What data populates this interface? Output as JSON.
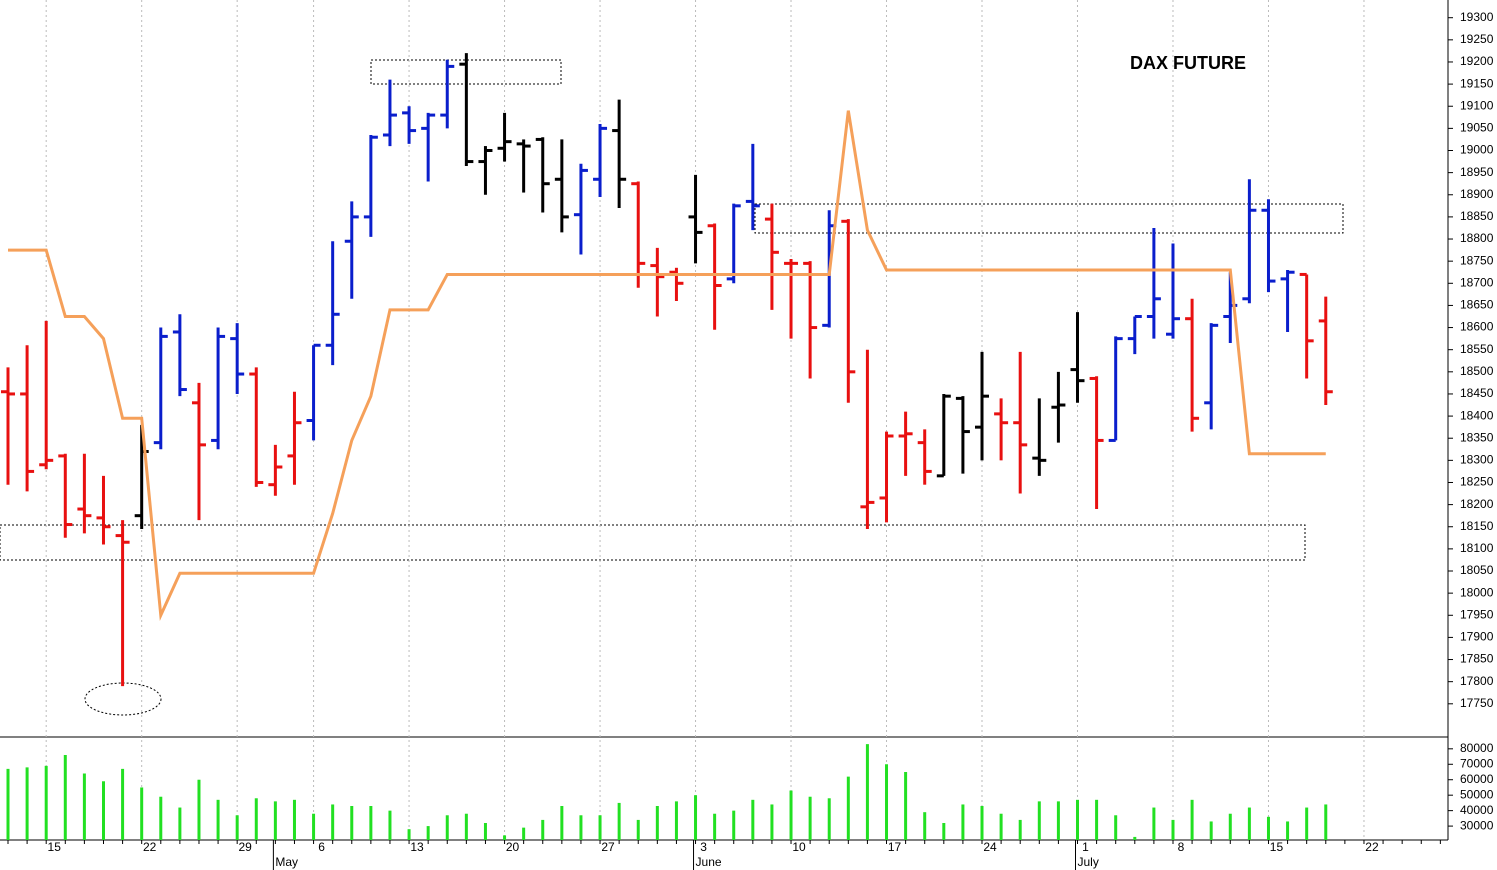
{
  "chart_data": [
    {
      "type": "ohlc",
      "title": "DAX FUTURE",
      "ylim": [
        17675,
        19340
      ],
      "yticks": [
        17750,
        17800,
        17850,
        17900,
        17950,
        18000,
        18050,
        18100,
        18150,
        18200,
        18250,
        18300,
        18350,
        18400,
        18450,
        18500,
        18550,
        18600,
        18650,
        18700,
        18750,
        18800,
        18850,
        18900,
        18950,
        19000,
        19050,
        19100,
        19150,
        19200,
        19250,
        19300
      ],
      "open": [
        18455,
        18450,
        18290,
        18310,
        18190,
        18170,
        18130,
        18175,
        18340,
        18590,
        18430,
        18345,
        18575,
        18495,
        18245,
        18310,
        18390,
        18560,
        18795,
        18850,
        19035,
        19085,
        19050,
        19080,
        19195,
        18975,
        19005,
        19015,
        19025,
        18935,
        18855,
        18935,
        19045,
        18925,
        18740,
        18725,
        18850,
        18830,
        18710,
        18885,
        18845,
        18745,
        18745,
        18605,
        18840,
        18195,
        18215,
        18355,
        18340,
        18265,
        18440,
        18375,
        18405,
        18385,
        18305,
        18420,
        18505,
        18485,
        18345,
        18575,
        18625,
        18585,
        18620,
        18430,
        18625,
        18665,
        18865,
        18710,
        18720,
        18615
      ],
      "high": [
        18510,
        18560,
        18615,
        18315,
        18315,
        18265,
        18165,
        18380,
        18600,
        18630,
        18475,
        18600,
        18610,
        18510,
        18335,
        18455,
        18560,
        18795,
        18885,
        19035,
        19160,
        19100,
        19085,
        19205,
        19220,
        19010,
        19085,
        19025,
        19030,
        19025,
        18970,
        19060,
        19115,
        18930,
        18780,
        18735,
        18945,
        18835,
        18880,
        19015,
        18880,
        18755,
        18750,
        18865,
        18845,
        18550,
        18365,
        18410,
        18370,
        18450,
        18445,
        18545,
        18440,
        18545,
        18440,
        18500,
        18635,
        18490,
        18580,
        18625,
        18825,
        18790,
        18665,
        18610,
        18725,
        18935,
        18890,
        18730,
        18720,
        18670
      ],
      "low": [
        18245,
        18230,
        18280,
        18125,
        18135,
        18110,
        17790,
        18145,
        18325,
        18445,
        18165,
        18325,
        18450,
        18240,
        18220,
        18245,
        18345,
        18515,
        18665,
        18805,
        19010,
        19015,
        18930,
        19050,
        18965,
        18900,
        18975,
        18905,
        18860,
        18815,
        18765,
        18895,
        18870,
        18690,
        18625,
        18660,
        18745,
        18595,
        18700,
        18820,
        18640,
        18575,
        18485,
        18600,
        18430,
        18145,
        18160,
        18265,
        18245,
        18265,
        18270,
        18300,
        18300,
        18225,
        18265,
        18340,
        18430,
        18190,
        18345,
        18540,
        18575,
        18575,
        18365,
        18370,
        18565,
        18655,
        18680,
        18590,
        18485,
        18425
      ],
      "close": [
        18450,
        18275,
        18300,
        18155,
        18175,
        18150,
        18115,
        18320,
        18580,
        18460,
        18335,
        18580,
        18495,
        18250,
        18285,
        18385,
        18560,
        18630,
        18850,
        19030,
        19080,
        19045,
        19080,
        19190,
        18975,
        19000,
        19020,
        19010,
        18925,
        18850,
        18955,
        19050,
        18935,
        18745,
        18715,
        18700,
        18815,
        18695,
        18875,
        18875,
        18770,
        18745,
        18600,
        18830,
        18500,
        18205,
        18355,
        18360,
        18275,
        18445,
        18365,
        18445,
        18385,
        18335,
        18300,
        18425,
        18480,
        18345,
        18575,
        18625,
        18665,
        18620,
        18395,
        18605,
        18650,
        18865,
        18705,
        18725,
        18570,
        18455
      ],
      "colors": [
        "#e81010",
        "#e81010",
        "#e81010",
        "#e81010",
        "#e81010",
        "#e81010",
        "#e81010",
        "#000000",
        "#0a1ecc",
        "#0a1ecc",
        "#e81010",
        "#0a1ecc",
        "#0a1ecc",
        "#e81010",
        "#e81010",
        "#e81010",
        "#0a1ecc",
        "#0a1ecc",
        "#0a1ecc",
        "#0a1ecc",
        "#0a1ecc",
        "#0a1ecc",
        "#0a1ecc",
        "#0a1ecc",
        "#000000",
        "#000000",
        "#000000",
        "#000000",
        "#000000",
        "#000000",
        "#0a1ecc",
        "#0a1ecc",
        "#000000",
        "#e81010",
        "#e81010",
        "#e81010",
        "#000000",
        "#e81010",
        "#0a1ecc",
        "#0a1ecc",
        "#e81010",
        "#e81010",
        "#e81010",
        "#0a1ecc",
        "#e81010",
        "#e81010",
        "#e81010",
        "#e81010",
        "#e81010",
        "#000000",
        "#000000",
        "#000000",
        "#e81010",
        "#e81010",
        "#000000",
        "#000000",
        "#000000",
        "#e81010",
        "#0a1ecc",
        "#0a1ecc",
        "#0a1ecc",
        "#0a1ecc",
        "#e81010",
        "#0a1ecc",
        "#0a1ecc",
        "#0a1ecc",
        "#0a1ecc",
        "#0a1ecc",
        "#e81010",
        "#e81010"
      ],
      "series": [
        {
          "type": "line",
          "color": "#f5a05a",
          "values": [
            18775,
            18775,
            18775,
            18625,
            18625,
            18575,
            18395,
            18395,
            17950,
            18045,
            18045,
            18045,
            18045,
            18045,
            18045,
            18045,
            18045,
            18180,
            18345,
            18445,
            18640,
            18640,
            18640,
            18720,
            18720,
            18720,
            18720,
            18720,
            18720,
            18720,
            18720,
            18720,
            18720,
            18720,
            18720,
            18720,
            18720,
            18720,
            18720,
            18720,
            18720,
            18720,
            18720,
            18720,
            19090,
            18820,
            18730,
            18730,
            18730,
            18730,
            18730,
            18730,
            18730,
            18730,
            18730,
            18730,
            18730,
            18730,
            18730,
            18730,
            18730,
            18730,
            18730,
            18730,
            18730,
            18315,
            18315,
            18315,
            18315,
            18315
          ]
        }
      ]
    },
    {
      "type": "bar",
      "color": "#22e022",
      "ylim": [
        21000,
        87000
      ],
      "yticks": [
        30000,
        40000,
        50000,
        60000,
        70000,
        80000
      ],
      "categories": [
        null,
        null,
        "15",
        null,
        null,
        null,
        null,
        "22",
        null,
        null,
        null,
        null,
        "29",
        null,
        null,
        null,
        "6",
        null,
        null,
        null,
        null,
        "13",
        null,
        null,
        null,
        null,
        "20",
        null,
        null,
        null,
        null,
        "27",
        null,
        null,
        null,
        null,
        "3",
        null,
        null,
        null,
        null,
        "10",
        null,
        null,
        null,
        null,
        "17",
        null,
        null,
        null,
        null,
        "24",
        null,
        null,
        null,
        null,
        "1",
        null,
        null,
        null,
        null,
        "8",
        null,
        null,
        null,
        null,
        "15",
        null,
        null,
        null,
        null,
        "22",
        null,
        null,
        null,
        null
      ],
      "months": [
        null,
        null,
        null,
        null,
        null,
        null,
        null,
        null,
        null,
        null,
        null,
        null,
        null,
        null,
        "May",
        null,
        null,
        null,
        null,
        null,
        null,
        null,
        null,
        null,
        null,
        null,
        null,
        null,
        null,
        null,
        null,
        null,
        null,
        null,
        null,
        null,
        "June",
        null,
        null,
        null,
        null,
        null,
        null,
        null,
        null,
        null,
        null,
        null,
        null,
        null,
        null,
        null,
        null,
        null,
        null,
        null,
        "July",
        null,
        null,
        null,
        null,
        null,
        null,
        null,
        null,
        null,
        null,
        null,
        null,
        null,
        null,
        null,
        null,
        null,
        null,
        null
      ],
      "values": [
        67000,
        68000,
        69000,
        76000,
        64000,
        59000,
        67000,
        55000,
        49000,
        42000,
        60000,
        47000,
        37000,
        48000,
        46000,
        47000,
        38000,
        44000,
        43000,
        43000,
        40000,
        28000,
        30000,
        37000,
        38000,
        32000,
        24000,
        29000,
        34000,
        43000,
        37000,
        37000,
        45000,
        34000,
        43000,
        46000,
        50000,
        38000,
        40000,
        47000,
        44000,
        53000,
        49000,
        48000,
        62000,
        83000,
        70000,
        65000,
        39000,
        32000,
        44000,
        43000,
        38000,
        34000,
        46000,
        46000,
        47000,
        47000,
        37000,
        23000,
        42000,
        34000,
        47000,
        33000,
        38000,
        42000,
        36000,
        33000,
        42000,
        44000,
        null,
        null,
        null,
        null,
        null,
        null
      ]
    }
  ]
}
